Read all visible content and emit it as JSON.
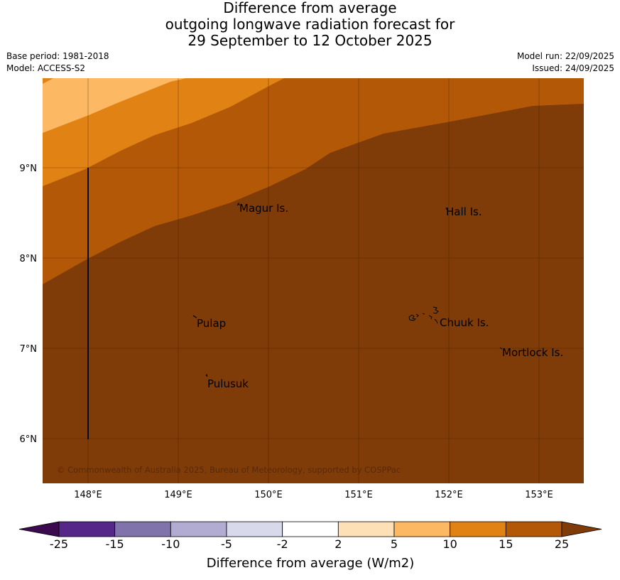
{
  "title": {
    "line1": "Difference from average",
    "line2": "outgoing longwave radiation forecast for",
    "line3": "29 September to 12 October 2025"
  },
  "meta": {
    "base_period": "Base period: 1981-2018",
    "model": "Model: ACCESS-S2",
    "model_run": "Model run: 22/09/2025",
    "issued": "Issued: 24/09/2025"
  },
  "axes": {
    "lat_labels": [
      "9°N",
      "8°N",
      "7°N",
      "6°N"
    ],
    "lon_labels": [
      "148°E",
      "149°E",
      "150°E",
      "151°E",
      "152°E",
      "153°E"
    ]
  },
  "places": [
    {
      "name": "Magur Is."
    },
    {
      "name": "Hall Is."
    },
    {
      "name": "Pulap"
    },
    {
      "name": "Chuuk Is."
    },
    {
      "name": "Mortlock Is."
    },
    {
      "name": "Pulusuk"
    }
  ],
  "copyright": "© Commonwealth of Australia 2025, Bureau of Meteorology, supported by COSPPac",
  "colorbar": {
    "title": "Difference from average (W/m2)",
    "ticks": [
      "-25",
      "-15",
      "-10",
      "-5",
      "-2",
      "2",
      "5",
      "10",
      "15",
      "25"
    ],
    "colors": {
      "below_min": "#3b0a4f",
      "bins": [
        "#542788",
        "#8073ac",
        "#b2abd2",
        "#d8daeb",
        "#ffffff",
        "#fee0b6",
        "#fdb863",
        "#e08214",
        "#b35806"
      ],
      "above_max": "#7f3b08"
    }
  },
  "map_colors": {
    "class_5_10": "#fdb863",
    "class_10_15": "#e08214",
    "class_15_25": "#b35806",
    "class_above_25": "#7f3b08"
  }
}
